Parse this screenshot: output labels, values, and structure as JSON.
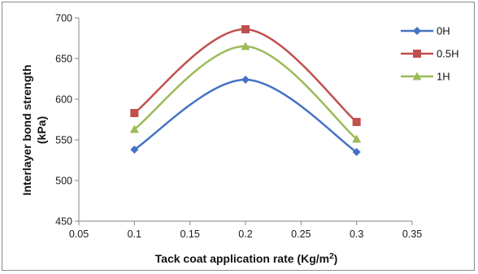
{
  "chart_data": {
    "type": "line",
    "smooth": true,
    "x": [
      0.1,
      0.2,
      0.3
    ],
    "xlim": [
      0.05,
      0.35
    ],
    "ylim": [
      450,
      700
    ],
    "xticks": [
      "0.05",
      "0.1",
      "0.15",
      "0.2",
      "0.25",
      "0.3",
      "0.35"
    ],
    "yticks": [
      "450",
      "500",
      "550",
      "600",
      "650",
      "700"
    ],
    "xlabel": "Tack coat application rate (Kg/m",
    "xlabel_superscript": "2",
    "xlabel_suffix": ")",
    "ylabel_line1": "Interlayer bond strength",
    "ylabel_line2": "(kPa)",
    "grid": false,
    "legend_position": "top-right",
    "series": [
      {
        "name": "0H",
        "values": [
          538,
          624,
          535
        ],
        "color": "#4472c4",
        "marker": "diamond"
      },
      {
        "name": "0.5H",
        "values": [
          583,
          686,
          572
        ],
        "color": "#c0504d",
        "marker": "square"
      },
      {
        "name": "1H",
        "values": [
          563,
          665,
          551
        ],
        "color": "#9bbb59",
        "marker": "triangle"
      }
    ]
  }
}
